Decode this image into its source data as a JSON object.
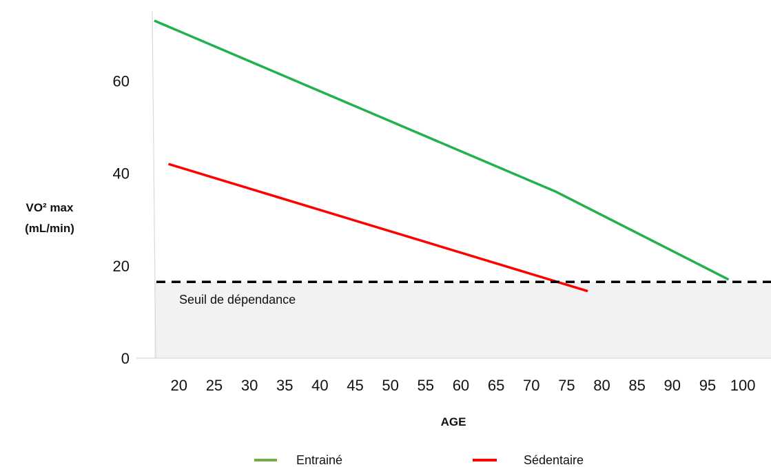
{
  "chart_data": {
    "type": "line",
    "title": "",
    "xlabel": "AGE",
    "ylabel_lines": [
      "VO² max",
      "(mL/min)"
    ],
    "x_ticks": [
      20,
      25,
      30,
      35,
      40,
      45,
      50,
      55,
      60,
      65,
      70,
      75,
      80,
      85,
      90,
      95,
      100
    ],
    "y_ticks": [
      0,
      20,
      40,
      60
    ],
    "xlim": [
      16.5,
      104
    ],
    "ylim": [
      0,
      73
    ],
    "grid": false,
    "legend_position": "bottom",
    "series": [
      {
        "name": "Entrainé",
        "color": "#22b14c",
        "points": [
          [
            16.5,
            73
          ],
          [
            73.5,
            36
          ],
          [
            98,
            17
          ]
        ]
      },
      {
        "name": "Sédentaire",
        "color": "#ff0000",
        "points": [
          [
            18.5,
            42
          ],
          [
            78,
            14.5
          ]
        ]
      }
    ],
    "threshold": {
      "label": "Seuil de dépendance",
      "value": 16.5,
      "line_color": "#000000",
      "fill_color": "#f2f2f2"
    },
    "legend": [
      {
        "label": "Entrainé",
        "color": "#70ad47"
      },
      {
        "label": "Sédentaire",
        "color": "#ff0000"
      }
    ]
  }
}
